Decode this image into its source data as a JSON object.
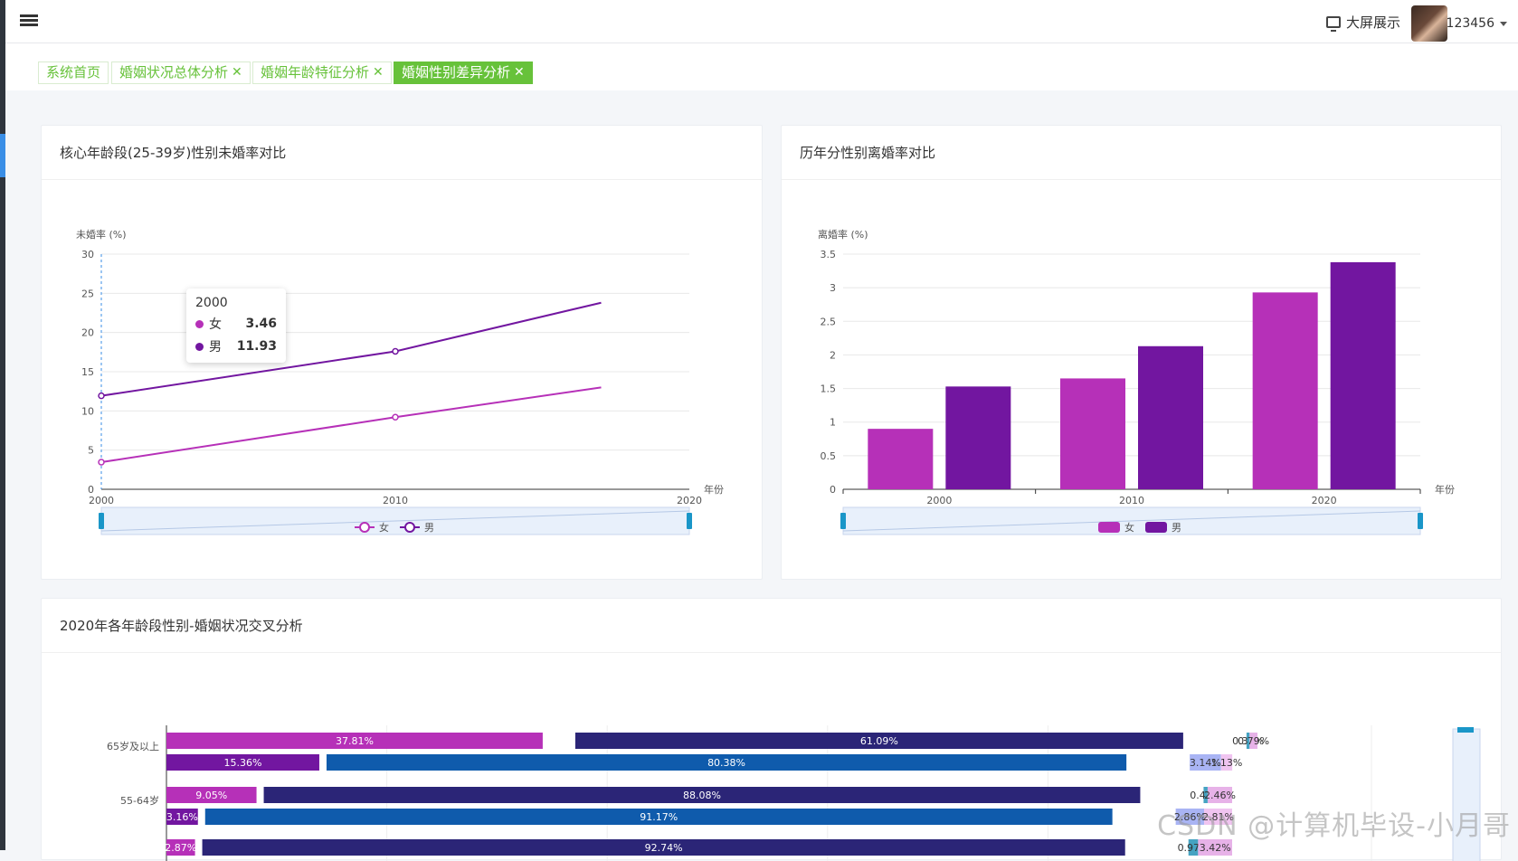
{
  "topbar": {
    "bigscreen_label": "大屏展示",
    "username": "123456"
  },
  "tabs": [
    {
      "label": "系统首页",
      "closable": false
    },
    {
      "label": "婚姻状况总体分析",
      "closable": true
    },
    {
      "label": "婚姻年龄特征分析",
      "closable": true
    },
    {
      "label": "婚姻性别差异分析",
      "closable": true,
      "active": true
    }
  ],
  "tab_close_glyph": "✕",
  "colors": {
    "female": "#b630b8",
    "male": "#7216a0",
    "dark_navy": "#2b2577",
    "blue": "#0f5bac",
    "accent_green": "#67c23a"
  },
  "cards": {
    "line_title": "核心年龄段(25-39岁)性别未婚率对比",
    "bar_title": "历年分性别离婚率对比",
    "cross_title": "2020年各年龄段性别-婚姻状况交叉分析"
  },
  "tooltip": {
    "year": "2000",
    "female_label": "女",
    "female_value": "3.46",
    "male_label": "男",
    "male_value": "11.93"
  },
  "chart_data": [
    {
      "type": "line",
      "ylabel": "未婚率 (%)",
      "xlabel": "年份",
      "x": [
        2000,
        2010,
        2020
      ],
      "ylim": [
        0,
        30
      ],
      "yticks": [
        0,
        5,
        10,
        15,
        20,
        25,
        30
      ],
      "xticks": [
        "2000",
        "2010",
        "2020"
      ],
      "series": [
        {
          "name": "女",
          "points": [
            [
              2000,
              3.46
            ],
            [
              2010,
              9.2
            ],
            [
              2017,
              13.0
            ]
          ]
        },
        {
          "name": "男",
          "points": [
            [
              2000,
              11.93
            ],
            [
              2010,
              17.6
            ],
            [
              2017,
              23.8
            ]
          ]
        }
      ],
      "legend": "bottom"
    },
    {
      "type": "bar",
      "ylabel": "离婚率 (%)",
      "xlabel": "年份",
      "categories": [
        "2000",
        "2010",
        "2020"
      ],
      "ylim": [
        0,
        3.5
      ],
      "yticks": [
        "0",
        "0.5",
        "1",
        "1.5",
        "2",
        "2.5",
        "3",
        "3.5"
      ],
      "series": [
        {
          "name": "女",
          "values": [
            0.9,
            1.65,
            2.93
          ]
        },
        {
          "name": "男",
          "values": [
            1.53,
            2.13,
            3.38
          ]
        }
      ],
      "legend": "bottom"
    },
    {
      "type": "bar",
      "orientation": "horizontal-stacked",
      "categories": [
        "65岁及以上",
        "55-64岁"
      ],
      "rows": [
        {
          "category": "65岁及以上",
          "segments": [
            "37.81%",
            "61.09%",
            "0.31%",
            "0.79%"
          ]
        },
        {
          "category": "65岁及以上",
          "segments": [
            "15.36%",
            "80.38%",
            "3.14%",
            "1.13%"
          ]
        },
        {
          "category": "55-64岁",
          "segments": [
            "9.05%",
            "88.08%",
            "0.41%",
            "2.46%"
          ]
        },
        {
          "category": "55-64岁",
          "segments": [
            "3.16%",
            "91.17%",
            "2.86%",
            "2.81%"
          ]
        },
        {
          "category": "",
          "segments": [
            "2.87%",
            "92.74%",
            "0.97%",
            "3.42%"
          ]
        }
      ]
    }
  ],
  "watermark": "CSDN @计算机毕设-小月哥"
}
